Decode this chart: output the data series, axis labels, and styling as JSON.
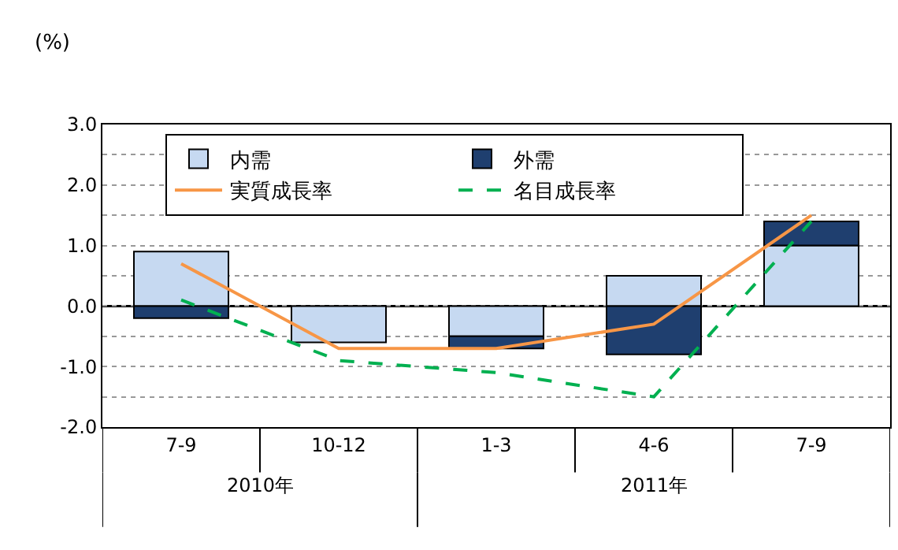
{
  "chart_data": {
    "type": "bar",
    "ylabel": "(%)",
    "categories": [
      "7-9",
      "10-12",
      "1-3",
      "4-6",
      "7-9"
    ],
    "stacked": true,
    "series": [
      {
        "name": "内需",
        "color": "#c6d9f1",
        "values": [
          0.9,
          -0.6,
          -0.5,
          0.5,
          1.0
        ]
      },
      {
        "name": "外需",
        "color": "#1f3f6f",
        "values": [
          -0.2,
          null,
          -0.2,
          -0.8,
          0.4
        ]
      },
      {
        "name": "実質成長率",
        "type": "line",
        "color": "#f79646",
        "line_style": "solid",
        "values": [
          0.7,
          -0.7,
          -0.7,
          -0.3,
          1.5
        ]
      },
      {
        "name": "名目成長率",
        "type": "line",
        "color": "#00b050",
        "line_style": "dashed",
        "values": [
          0.1,
          -0.9,
          -1.1,
          -1.5,
          1.4
        ]
      }
    ],
    "ylim": [
      -2,
      3
    ],
    "yticks": [
      {
        "value": -2,
        "label": "-2.0"
      },
      {
        "value": -1.5,
        "label": null
      },
      {
        "value": -1,
        "label": "-1.0"
      },
      {
        "value": -0.5,
        "label": null
      },
      {
        "value": 0,
        "label": "0.0"
      },
      {
        "value": 0.5,
        "label": null
      },
      {
        "value": 1,
        "label": "1.0"
      },
      {
        "value": 1.5,
        "label": null
      },
      {
        "value": 2,
        "label": "2.0"
      },
      {
        "value": 2.5,
        "label": null
      },
      {
        "value": 3,
        "label": "3.0"
      }
    ],
    "grid": "y",
    "legend": "top left",
    "marker": "none",
    "annotations": [
      "2010年",
      "2011年"
    ]
  }
}
